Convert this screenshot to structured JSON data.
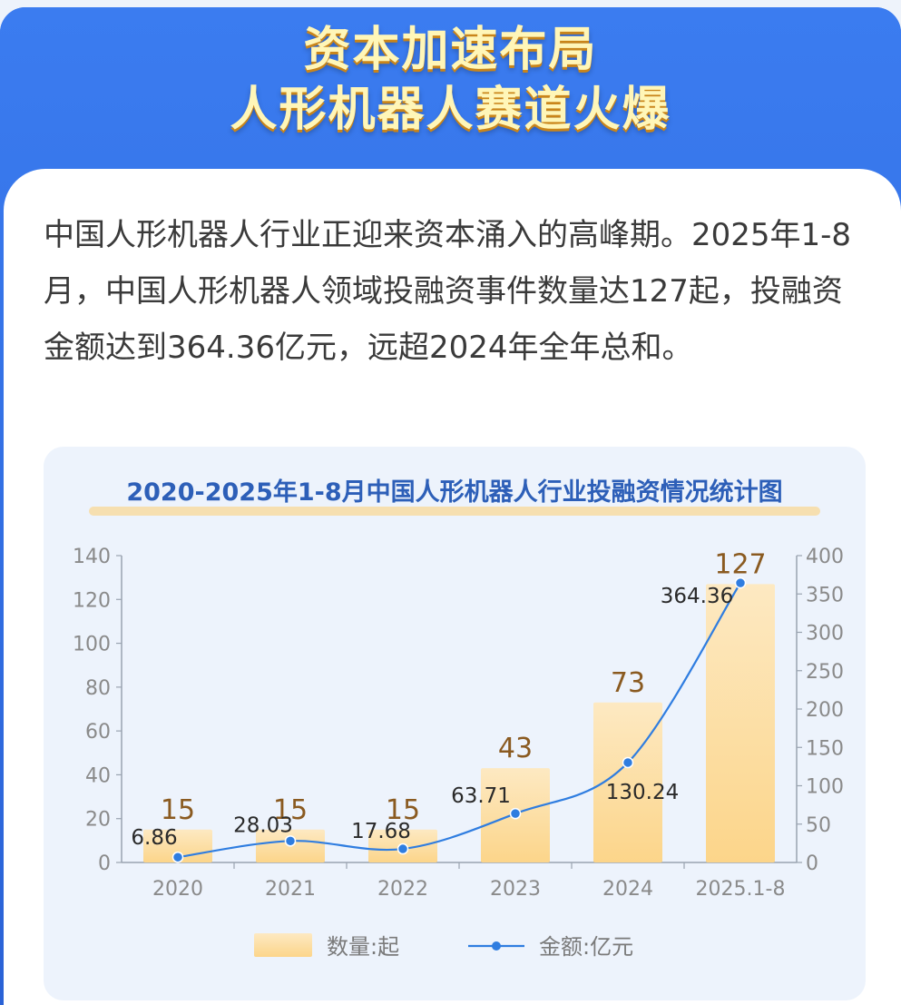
{
  "header": {
    "line1": "资本加速布局",
    "line2": "人形机器人赛道火爆"
  },
  "intro": {
    "text": "中国人形机器人行业正迎来资本涌入的高峰期。2025年1-8月，中国人形机器人领域投融资事件数量达127起，投融资金额达到364.36亿元，远超2024年全年总和。"
  },
  "colors": {
    "bar": "#fcd58a",
    "line": "#2f7de0",
    "title": "#2d5fb8"
  },
  "chart_data": {
    "type": "bar",
    "title": "2020-2025年1-8月中国人形机器人行业投融资情况统计图",
    "categories": [
      "2020",
      "2021",
      "2022",
      "2023",
      "2024",
      "2025.1-8"
    ],
    "series": [
      {
        "name": "数量:起",
        "type": "bar",
        "axis": "left",
        "values": [
          15,
          15,
          15,
          43,
          73,
          127
        ],
        "labels": [
          "15",
          "15",
          "15",
          "43",
          "73",
          "127"
        ]
      },
      {
        "name": "金额:亿元",
        "type": "line",
        "axis": "right",
        "values": [
          6.86,
          28.03,
          17.68,
          63.71,
          130.24,
          364.36
        ],
        "labels": [
          "6.86",
          "28.03",
          "17.68",
          "63.71",
          "130.24",
          "364.36"
        ]
      }
    ],
    "y_left": {
      "min": 0,
      "max": 140,
      "ticks": [
        "0",
        "20",
        "40",
        "60",
        "80",
        "100",
        "120",
        "140"
      ]
    },
    "y_right": {
      "min": 0,
      "max": 400,
      "ticks": [
        "0",
        "50",
        "100",
        "150",
        "200",
        "250",
        "300",
        "350",
        "400"
      ]
    },
    "grid": false,
    "legend_position": "bottom"
  }
}
